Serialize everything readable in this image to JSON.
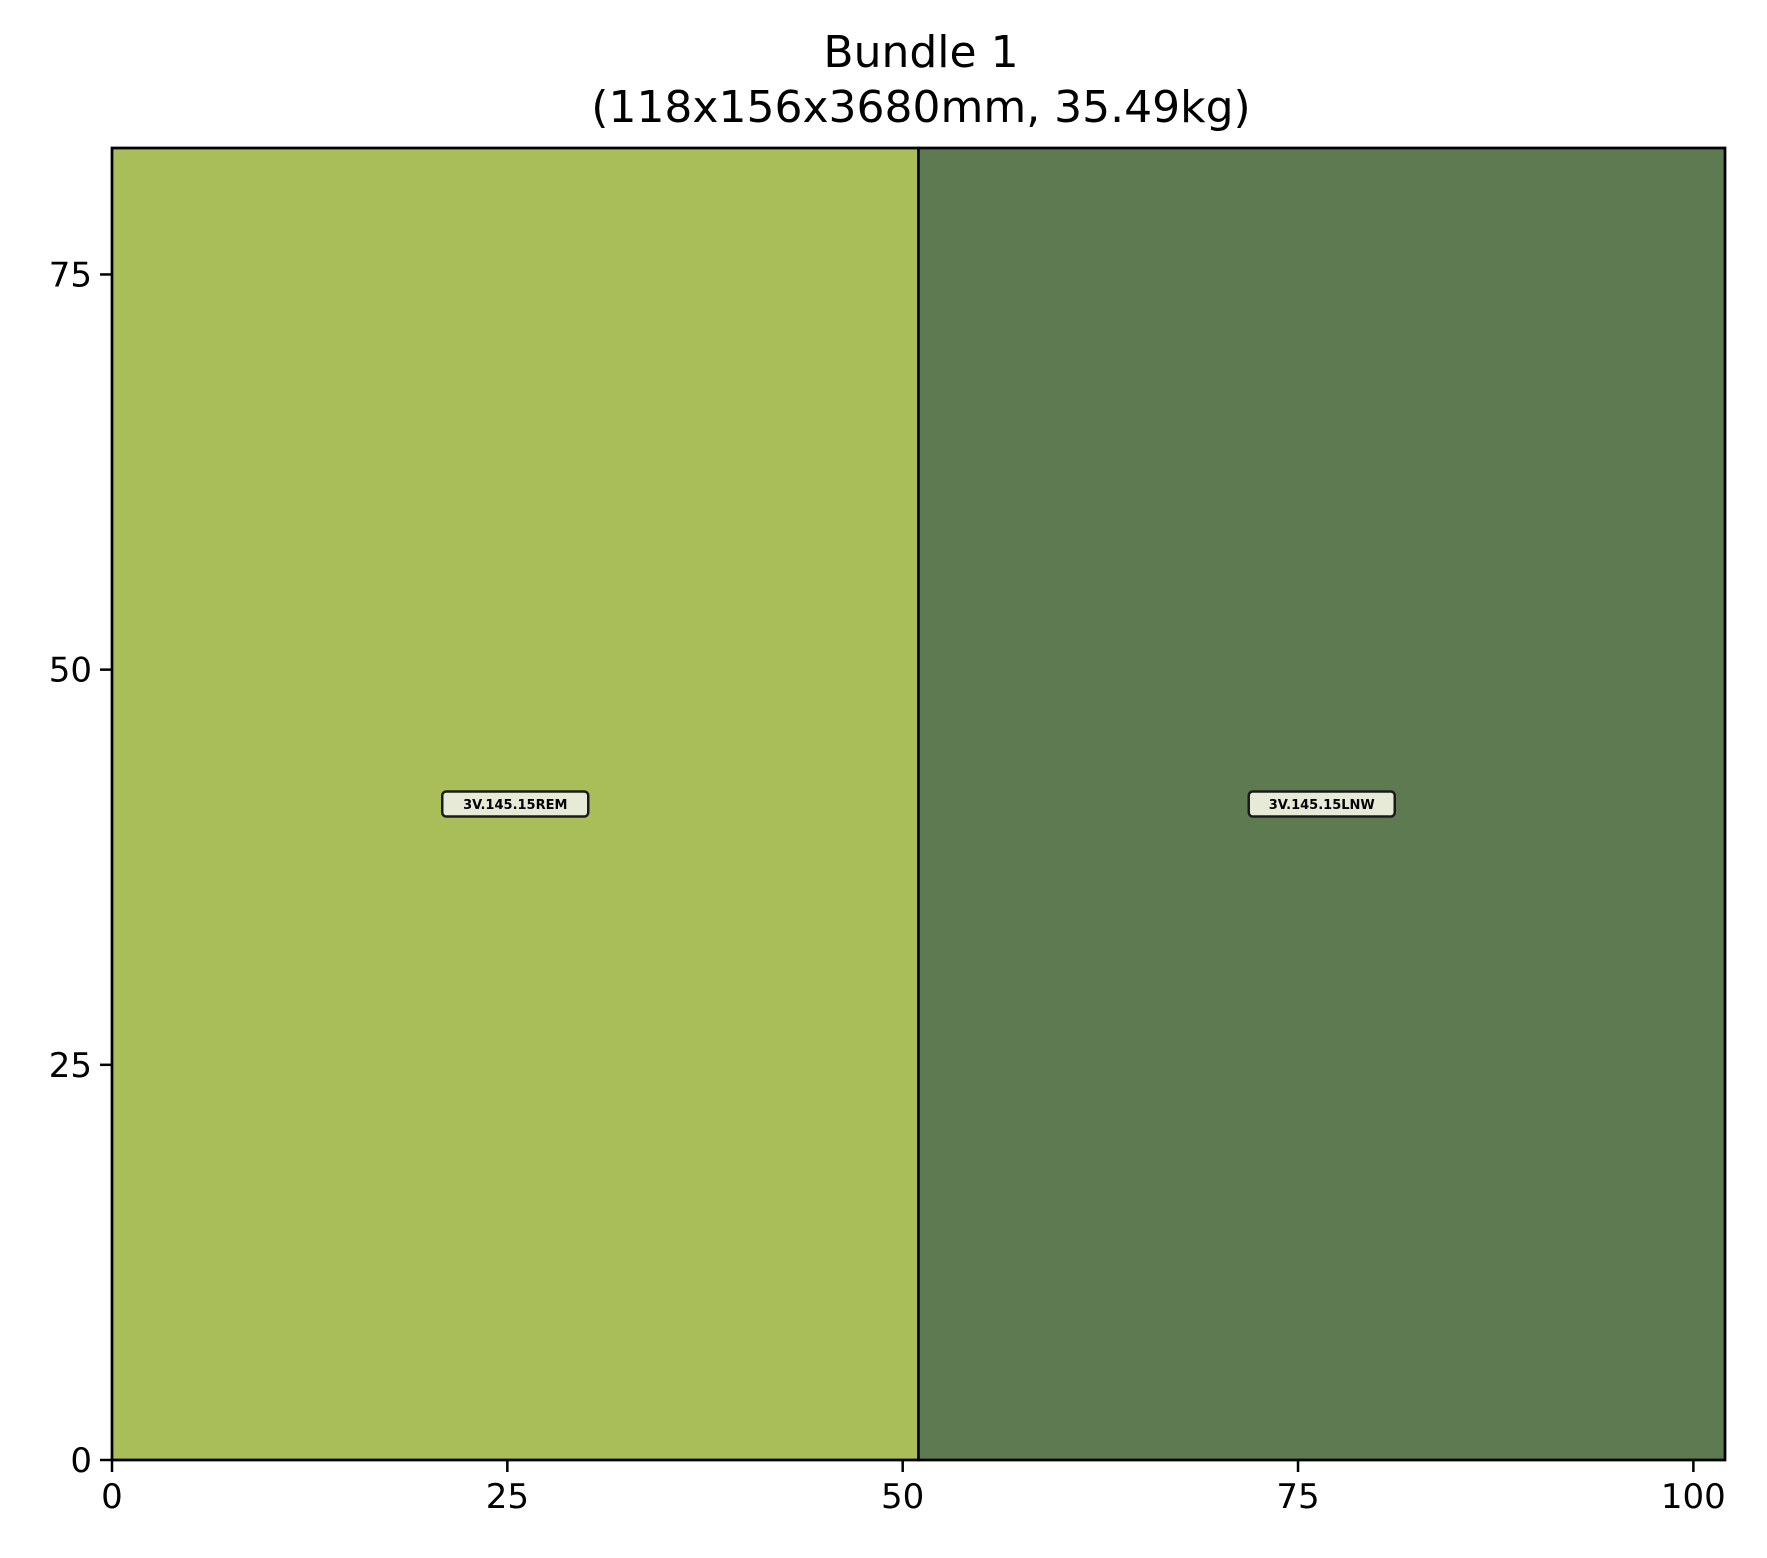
{
  "chart_data": {
    "type": "rectangles",
    "title": "Bundle 1",
    "subtitle": "(118x156x3680mm, 35.49kg)",
    "xlabel": "",
    "ylabel": "",
    "xlim": [
      0,
      102
    ],
    "ylim": [
      0,
      83
    ],
    "xticks": [
      0,
      25,
      50,
      75,
      100
    ],
    "yticks": [
      0,
      25,
      50,
      75
    ],
    "grid": false,
    "pieces": [
      {
        "label": "3V.145.15REM",
        "x": 0,
        "y": 0,
        "width": 51,
        "height": 83,
        "color": "#a9bd59"
      },
      {
        "label": "3V.145.15LNW",
        "x": 51,
        "y": 0,
        "width": 51,
        "height": 83,
        "color": "#5e7a51"
      }
    ],
    "label_box_color": "#e8ead8",
    "edge_color": "#000000"
  }
}
